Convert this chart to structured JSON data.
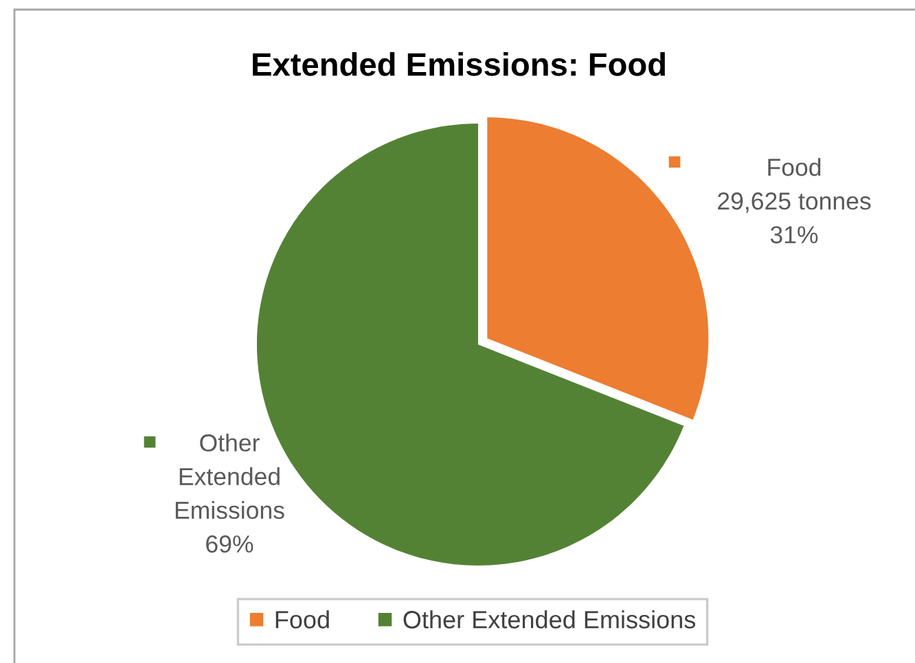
{
  "chart_data": {
    "type": "pie",
    "title": "Extended Emissions: Food",
    "categories": [
      "Food",
      "Other Extended Emissions"
    ],
    "values": [
      31,
      69
    ],
    "colors": [
      "#ed7d31",
      "#548235"
    ],
    "value_labels": [
      "29,625 tonnes\n31%",
      "69%"
    ],
    "legend": "bottom"
  }
}
